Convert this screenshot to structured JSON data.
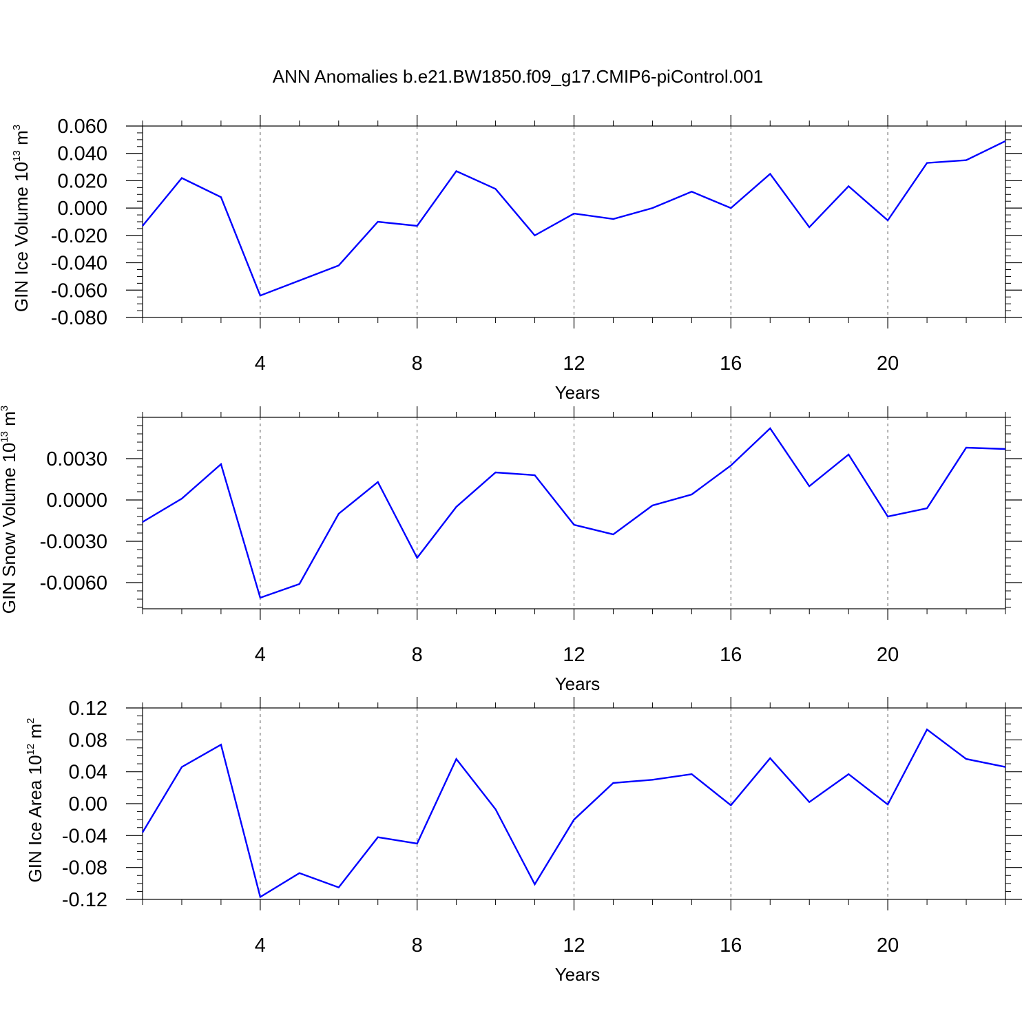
{
  "title": "ANN Anomalies b.e21.BW1850.f09_g17.CMIP6-piControl.001",
  "line_color": "#0000ff",
  "chart_data": [
    {
      "type": "line",
      "ylabel": {
        "text": "GIN Ice Volume 10",
        "exp": "13",
        "unit": " m",
        "unit_exp": "3"
      },
      "xlabel": "Years",
      "xlim": [
        1,
        23
      ],
      "ylim": [
        -0.08,
        0.06
      ],
      "xticks": [
        4,
        8,
        12,
        16,
        20
      ],
      "xticks_labels": [
        "4",
        "8",
        "12",
        "16",
        "20"
      ],
      "yticks": [
        -0.08,
        -0.06,
        -0.04,
        -0.02,
        0.0,
        0.02,
        0.04,
        0.06
      ],
      "yticks_labels": [
        "-0.080",
        "-0.060",
        "-0.040",
        "-0.020",
        "0.000",
        "0.020",
        "0.040",
        "0.060"
      ],
      "ytick_minor_step": 0.005,
      "grid": "dashed vertical at major x ticks",
      "x": [
        1,
        2,
        3,
        4,
        5,
        6,
        7,
        8,
        9,
        10,
        11,
        12,
        13,
        14,
        15,
        16,
        17,
        18,
        19,
        20,
        21,
        22,
        23
      ],
      "y": [
        -0.013,
        0.022,
        0.008,
        -0.064,
        -0.053,
        -0.042,
        -0.01,
        -0.013,
        0.027,
        0.014,
        -0.02,
        -0.004,
        -0.008,
        0.0,
        0.012,
        0.0,
        0.025,
        -0.014,
        0.016,
        -0.009,
        0.033,
        0.035,
        0.049
      ]
    },
    {
      "type": "line",
      "ylabel": {
        "text": "GIN Snow Volume 10",
        "exp": "13",
        "unit": " m",
        "unit_exp": "3"
      },
      "xlabel": "Years",
      "xlim": [
        1,
        23
      ],
      "ylim": [
        -0.0079,
        0.006
      ],
      "xticks": [
        4,
        8,
        12,
        16,
        20
      ],
      "xticks_labels": [
        "4",
        "8",
        "12",
        "16",
        "20"
      ],
      "yticks": [
        -0.006,
        -0.003,
        0.0,
        0.003
      ],
      "yticks_labels": [
        "-0.0060",
        "-0.0030",
        "0.0000",
        "0.0030"
      ],
      "ytick_minor_step": 0.0006,
      "grid": "dashed vertical at major x ticks",
      "x": [
        1,
        2,
        3,
        4,
        5,
        6,
        7,
        8,
        9,
        10,
        11,
        12,
        13,
        14,
        15,
        16,
        17,
        18,
        19,
        20,
        21,
        22,
        23
      ],
      "y": [
        -0.0016,
        0.0001,
        0.0026,
        -0.0071,
        -0.0061,
        -0.001,
        0.0013,
        -0.0042,
        -0.0005,
        0.002,
        0.0018,
        -0.0018,
        -0.0025,
        -0.0004,
        0.0004,
        0.0025,
        0.0052,
        0.001,
        0.0033,
        -0.0012,
        -0.0006,
        0.0038,
        0.0037
      ]
    },
    {
      "type": "line",
      "ylabel": {
        "text": "GIN Ice Area 10",
        "exp": "12",
        "unit": " m",
        "unit_exp": "2"
      },
      "xlabel": "Years",
      "xlim": [
        1,
        23
      ],
      "ylim": [
        -0.12,
        0.12
      ],
      "xticks": [
        4,
        8,
        12,
        16,
        20
      ],
      "xticks_labels": [
        "4",
        "8",
        "12",
        "16",
        "20"
      ],
      "yticks": [
        -0.12,
        -0.08,
        -0.04,
        0.0,
        0.04,
        0.08,
        0.12
      ],
      "yticks_labels": [
        "-0.12",
        "-0.08",
        "-0.04",
        "0.00",
        "0.04",
        "0.08",
        "0.12"
      ],
      "ytick_minor_step": 0.01,
      "grid": "dashed vertical at major x ticks",
      "x": [
        1,
        2,
        3,
        4,
        5,
        6,
        7,
        8,
        9,
        10,
        11,
        12,
        13,
        14,
        15,
        16,
        17,
        18,
        19,
        20,
        21,
        22,
        23
      ],
      "y": [
        -0.036,
        0.046,
        0.074,
        -0.117,
        -0.087,
        -0.105,
        -0.042,
        -0.05,
        0.056,
        -0.007,
        -0.101,
        -0.02,
        0.026,
        0.03,
        0.037,
        -0.002,
        0.057,
        0.002,
        0.037,
        -0.001,
        0.093,
        0.056,
        0.046
      ]
    }
  ]
}
